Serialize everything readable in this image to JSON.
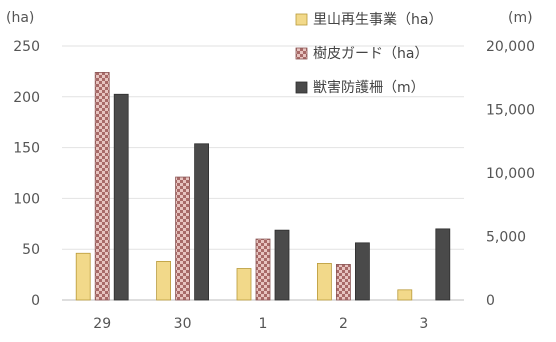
{
  "chart_data": {
    "type": "bar",
    "categories": [
      "29",
      "30",
      "1",
      "2",
      "3"
    ],
    "left_axis": {
      "unit": "(ha)",
      "ylim": [
        0,
        250
      ],
      "ticks": [
        0,
        50,
        100,
        150,
        200,
        250
      ],
      "tick_labels": [
        "0",
        "50",
        "100",
        "150",
        "200",
        "250"
      ]
    },
    "right_axis": {
      "unit": "(m)",
      "ylim": [
        0,
        20000
      ],
      "ticks": [
        0,
        5000,
        10000,
        15000,
        20000
      ],
      "tick_labels": [
        "0",
        "5,000",
        "10,000",
        "15,000",
        "20,000"
      ]
    },
    "series": [
      {
        "name": "里山再生事業（ha）",
        "axis": "left",
        "color": "#f2d98a",
        "stroke": "#b89a3a",
        "pattern": "solid",
        "values": [
          46,
          38,
          31,
          36,
          10
        ]
      },
      {
        "name": "樹皮ガード（ha）",
        "axis": "left",
        "color": "#c98d8a",
        "stroke": "#8a5554",
        "pattern": "checker",
        "values": [
          224,
          121,
          60,
          35,
          null
        ]
      },
      {
        "name": "獣害防護柵（m）",
        "axis": "right",
        "color": "#4a4a4a",
        "stroke": "#2e2e2e",
        "pattern": "solid",
        "values": [
          16200,
          12300,
          5500,
          4500,
          5600
        ]
      }
    ],
    "grid": true,
    "legend_position": "top-right"
  }
}
